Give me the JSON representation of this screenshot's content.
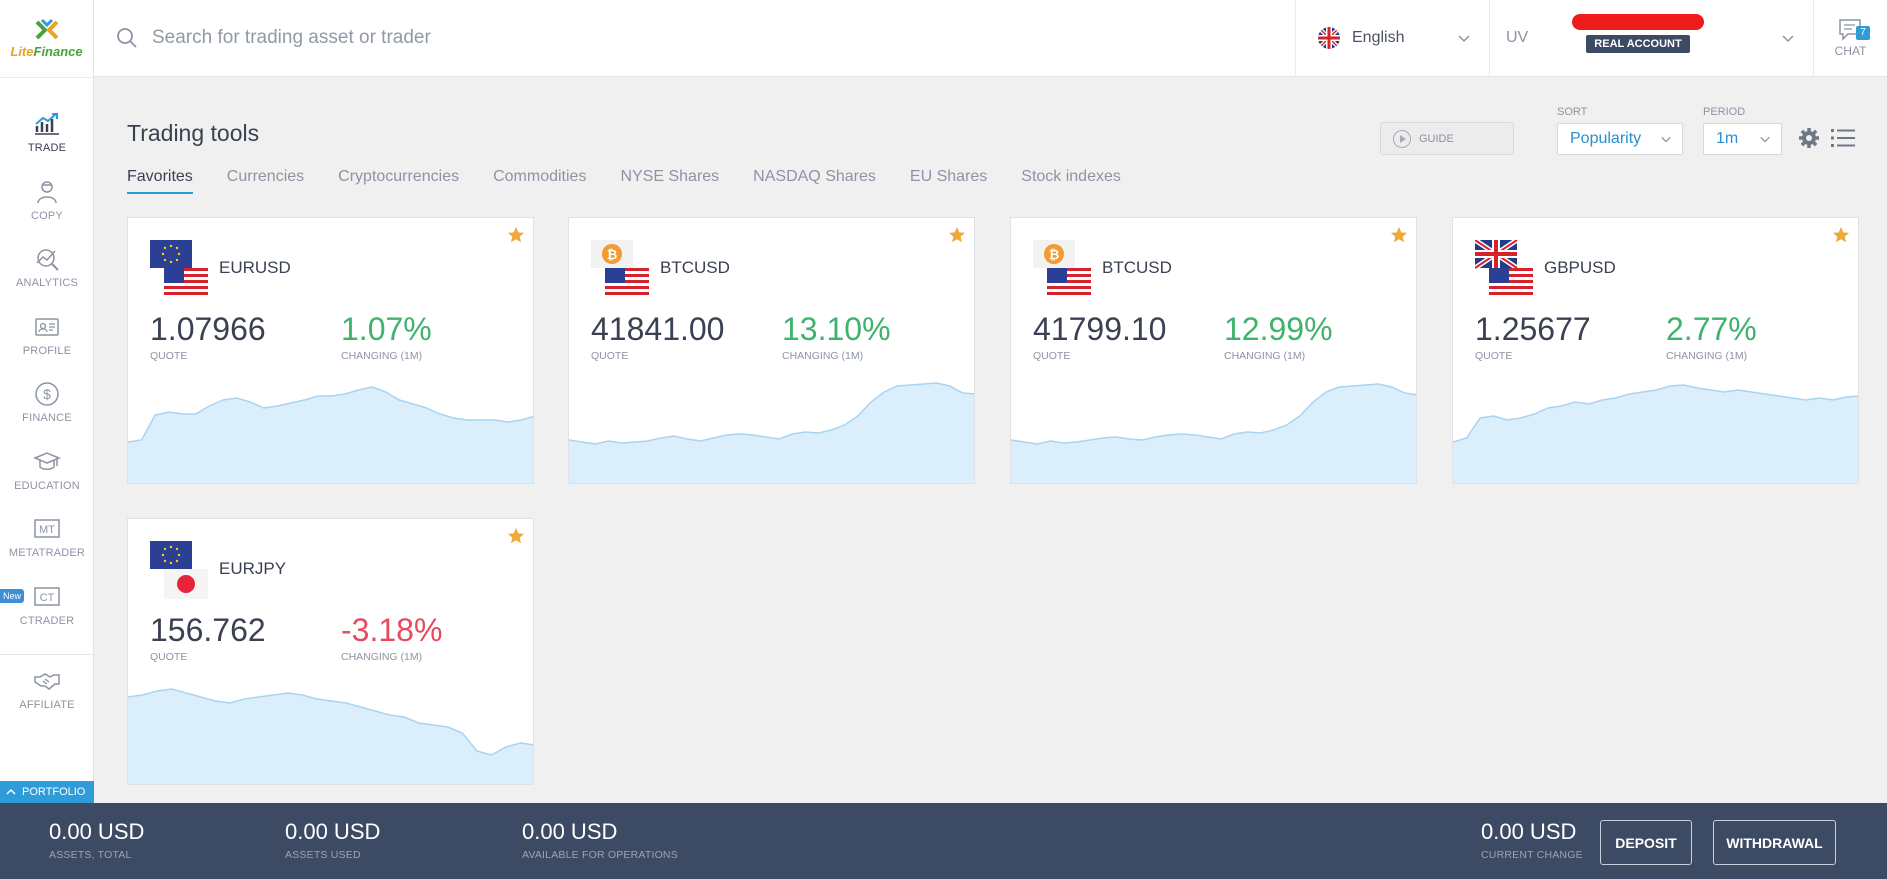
{
  "app": {
    "logo_text_1": "Lite",
    "logo_text_2": "Finance",
    "accent": "#2f9bd8"
  },
  "header": {
    "search_placeholder": "Search for trading asset or trader",
    "language": "English",
    "account_prefix": "UV",
    "account_badge": "REAL ACCOUNT",
    "chat_label": "CHAT",
    "chat_count": "7"
  },
  "sidebar": {
    "items": [
      {
        "label": "TRADE",
        "icon": "trade-chart-icon"
      },
      {
        "label": "COPY",
        "icon": "copy-trader-icon"
      },
      {
        "label": "ANALYTICS",
        "icon": "analytics-icon"
      },
      {
        "label": "PROFILE",
        "icon": "profile-card-icon"
      },
      {
        "label": "FINANCE",
        "icon": "dollar-coin-icon"
      },
      {
        "label": "EDUCATION",
        "icon": "graduation-cap-icon"
      },
      {
        "label": "METATRADER",
        "icon": "mt-icon"
      },
      {
        "label": "CTRADER",
        "icon": "ct-icon"
      },
      {
        "label": "AFFILIATE",
        "icon": "handshake-icon"
      }
    ],
    "new_badge": "New",
    "portfolio": "PORTFOLIO"
  },
  "main": {
    "title": "Trading tools",
    "guide": "GUIDE",
    "sort_label": "SORT",
    "sort_value": "Popularity",
    "period_label": "PERIOD",
    "period_value": "1m",
    "tabs": [
      "Favorites",
      "Currencies",
      "Cryptocurrencies",
      "Commodities",
      "NYSE Shares",
      "NASDAQ Shares",
      "EU Shares",
      "Stock indexes"
    ]
  },
  "cards": [
    {
      "pair": "EURUSD",
      "quote": "1.07966",
      "quote_label": "QUOTE",
      "change": "1.07%",
      "change_label": "CHANGING (1M)",
      "trend": "up",
      "spark": [
        72,
        70,
        45,
        42,
        44,
        44,
        36,
        30,
        28,
        32,
        38,
        36,
        33,
        30,
        26,
        26,
        24,
        20,
        17,
        22,
        30,
        34,
        38,
        44,
        48,
        50,
        50,
        50,
        52,
        50,
        46
      ]
    },
    {
      "pair": "BTCUSD",
      "quote": "41841.00",
      "quote_label": "QUOTE",
      "change": "13.10%",
      "change_label": "CHANGING (1M)",
      "trend": "up",
      "spark": [
        70,
        72,
        74,
        71,
        73,
        72,
        71,
        68,
        66,
        69,
        71,
        68,
        65,
        64,
        65,
        67,
        69,
        64,
        62,
        63,
        60,
        55,
        46,
        32,
        22,
        16,
        15,
        14,
        13,
        16,
        23,
        24
      ]
    },
    {
      "pair": "BTCUSD",
      "quote": "41799.10",
      "quote_label": "QUOTE",
      "change": "12.99%",
      "change_label": "CHANGING (1M)",
      "trend": "up",
      "spark": [
        70,
        72,
        74,
        71,
        73,
        72,
        70,
        68,
        67,
        69,
        70,
        67,
        65,
        64,
        65,
        67,
        69,
        64,
        62,
        63,
        60,
        55,
        46,
        32,
        22,
        17,
        16,
        15,
        14,
        17,
        23,
        25
      ]
    },
    {
      "pair": "GBPUSD",
      "quote": "1.25677",
      "quote_label": "QUOTE",
      "change": "2.77%",
      "change_label": "CHANGING (1M)",
      "trend": "up",
      "spark": [
        72,
        68,
        48,
        46,
        50,
        48,
        44,
        38,
        36,
        32,
        34,
        30,
        28,
        24,
        22,
        20,
        16,
        15,
        18,
        20,
        22,
        20,
        22,
        24,
        26,
        28,
        30,
        28,
        30,
        27,
        26
      ]
    },
    {
      "pair": "EURJPY",
      "quote": "156.762",
      "quote_label": "QUOTE",
      "change": "-3.18%",
      "change_label": "CHANGING (1M)",
      "trend": "down",
      "spark": [
        26,
        24,
        20,
        18,
        22,
        26,
        30,
        32,
        28,
        26,
        24,
        22,
        24,
        28,
        30,
        32,
        36,
        40,
        44,
        46,
        52,
        54,
        56,
        62,
        80,
        84,
        76,
        72,
        74
      ]
    }
  ],
  "footer": {
    "stats": [
      {
        "value": "0.00 USD",
        "label": "ASSETS, TOTAL"
      },
      {
        "value": "0.00 USD",
        "label": "ASSETS USED"
      },
      {
        "value": "0.00 USD",
        "label": "AVAILABLE FOR OPERATIONS"
      }
    ],
    "current_change": {
      "value": "0.00 USD",
      "label": "CURRENT CHANGE"
    },
    "deposit": "DEPOSIT",
    "withdrawal": "WITHDRAWAL"
  }
}
